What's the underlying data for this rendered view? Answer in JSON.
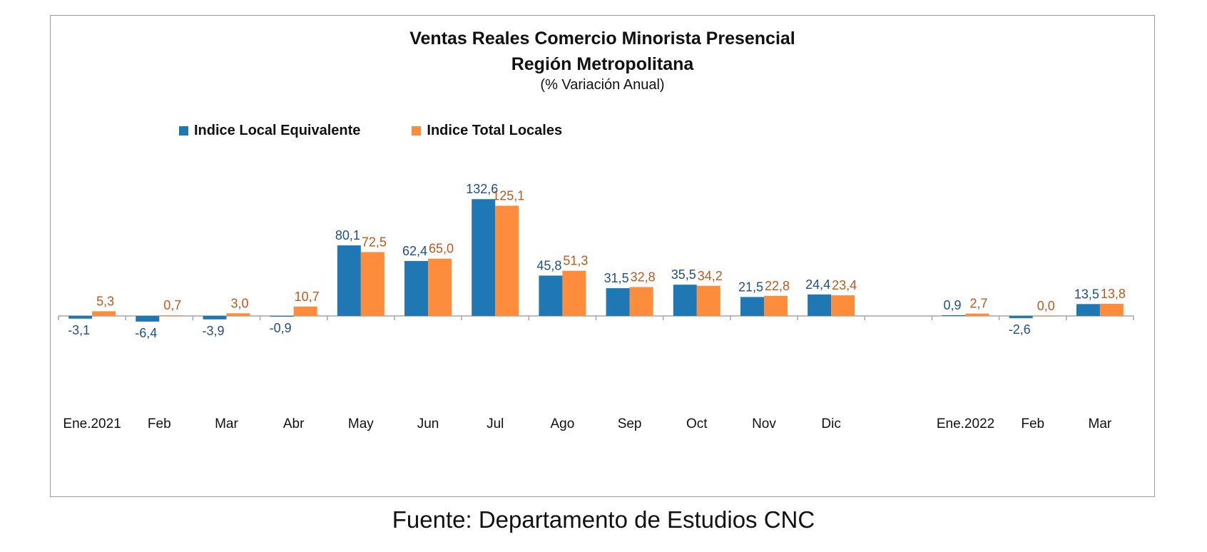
{
  "chart_data": {
    "type": "bar",
    "title": "Ventas Reales Comercio Minorista Presencial",
    "title_line2": "Región Metropolitana",
    "subtitle": "(% Variación Anual)",
    "categories": [
      "Ene.2021",
      "Feb",
      "Mar",
      "Abr",
      "May",
      "Jun",
      "Jul",
      "Ago",
      "Sep",
      "Oct",
      "Nov",
      "Dic",
      "",
      "Ene.2022",
      "Feb",
      "Mar"
    ],
    "series": [
      {
        "name": "Indice Local Equivalente",
        "color": "#1f77b4",
        "label_color": "#1f4e8c",
        "values": [
          -3.1,
          -6.4,
          -3.9,
          -0.9,
          80.1,
          62.4,
          132.6,
          45.8,
          31.5,
          35.5,
          21.5,
          24.4,
          null,
          0.9,
          -2.6,
          13.5
        ],
        "labels": [
          "-3,1",
          "-6,4",
          "-3,9",
          "-0,9",
          "80,1",
          "62,4",
          "132,6",
          "45,8",
          "31,5",
          "35,5",
          "21,5",
          "24,4",
          "",
          "0,9",
          "-2,6",
          "13,5"
        ]
      },
      {
        "name": "Indice Total Locales",
        "color": "#fd8d3c",
        "label_color": "#c0581a",
        "values": [
          5.3,
          0.7,
          3.0,
          10.7,
          72.5,
          65.0,
          125.1,
          51.3,
          32.8,
          34.2,
          22.8,
          23.4,
          null,
          2.7,
          0.0,
          13.8
        ],
        "labels": [
          "5,3",
          "0,7",
          "3,0",
          "10,7",
          "72,5",
          "65,0",
          "125,1",
          "51,3",
          "32,8",
          "34,2",
          "22,8",
          "23,4",
          "",
          "2,7",
          "0,0",
          "13,8"
        ]
      }
    ],
    "ylim": [
      -120,
      180
    ],
    "grid": false,
    "legend_position": "top-left"
  },
  "source": "Fuente: Departamento de Estudios CNC"
}
